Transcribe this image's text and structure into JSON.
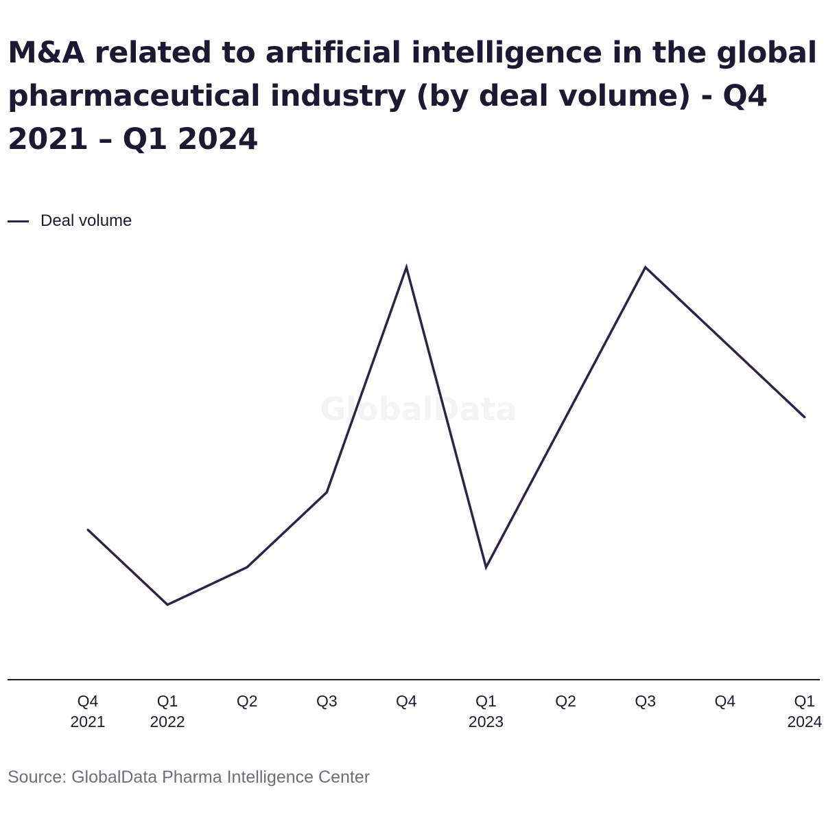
{
  "watermark": "GlobalData",
  "source": "Source: GlobalData Pharma Intelligence Center",
  "colors": {
    "series": "#2e2246",
    "text": "#1c1a33",
    "axis": "#1c1a33",
    "source_text": "#6e6e78"
  },
  "chart_data": {
    "type": "line",
    "title": "M&A related to artificial intelligence in the global pharmaceutical industry (by deal volume) - Q4 2021 – Q1 2024",
    "xlabel": "",
    "ylabel": "",
    "grid": false,
    "legend_position": "top-left",
    "y_axis_visible": false,
    "categories": [
      [
        "Q4",
        "2021"
      ],
      [
        "Q1",
        "2022"
      ],
      [
        "Q2"
      ],
      [
        "Q3"
      ],
      [
        "Q4"
      ],
      [
        "Q1",
        "2023"
      ],
      [
        "Q2"
      ],
      [
        "Q3"
      ],
      [
        "Q4"
      ],
      [
        "Q1",
        "2024"
      ]
    ],
    "ylim": [
      0,
      12
    ],
    "series": [
      {
        "name": "Deal volume",
        "values": [
          4,
          2,
          3,
          5,
          11,
          3,
          7,
          11,
          9,
          7
        ]
      }
    ]
  }
}
